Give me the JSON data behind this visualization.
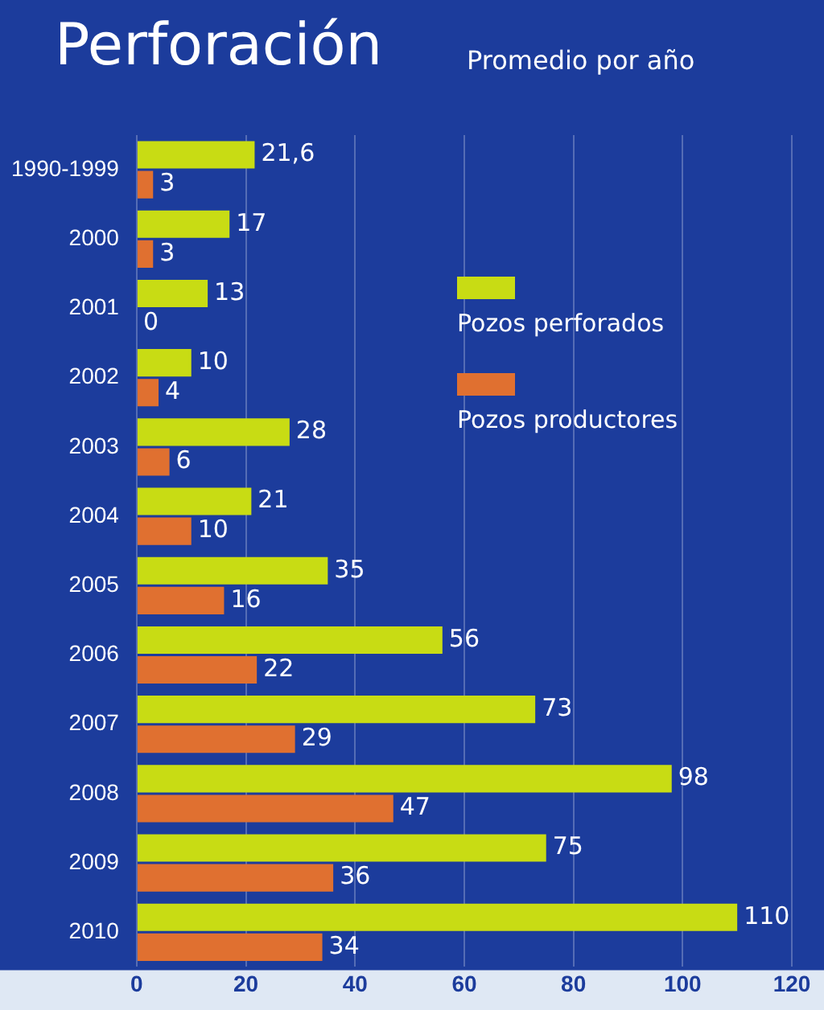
{
  "chart_data": {
    "type": "bar",
    "orientation": "horizontal",
    "title": "Perforación",
    "subtitle": "Promedio por año",
    "categories": [
      "1990-1999",
      "2000",
      "2001",
      "2002",
      "2003",
      "2004",
      "2005",
      "2006",
      "2007",
      "2008",
      "2009",
      "2010"
    ],
    "series": [
      {
        "name": "Pozos perforados",
        "color": "#c8dc14",
        "values": [
          21.6,
          17,
          13,
          10,
          28,
          21,
          35,
          56,
          73,
          98,
          75,
          110
        ],
        "value_labels": [
          "21,6",
          "17",
          "13",
          "10",
          "28",
          "21",
          "35",
          "56",
          "73",
          "98",
          "75",
          "110"
        ]
      },
      {
        "name": "Pozos productores",
        "color": "#e07030",
        "values": [
          3,
          3,
          0,
          4,
          6,
          10,
          16,
          22,
          29,
          47,
          36,
          34
        ],
        "value_labels": [
          "3",
          "3",
          "0",
          "4",
          "6",
          "10",
          "16",
          "22",
          "29",
          "47",
          "36",
          "34"
        ]
      }
    ],
    "xlim": [
      0,
      120
    ],
    "xticks": [
      0,
      20,
      40,
      60,
      80,
      100,
      120
    ],
    "grid": "x",
    "legend": "right"
  }
}
